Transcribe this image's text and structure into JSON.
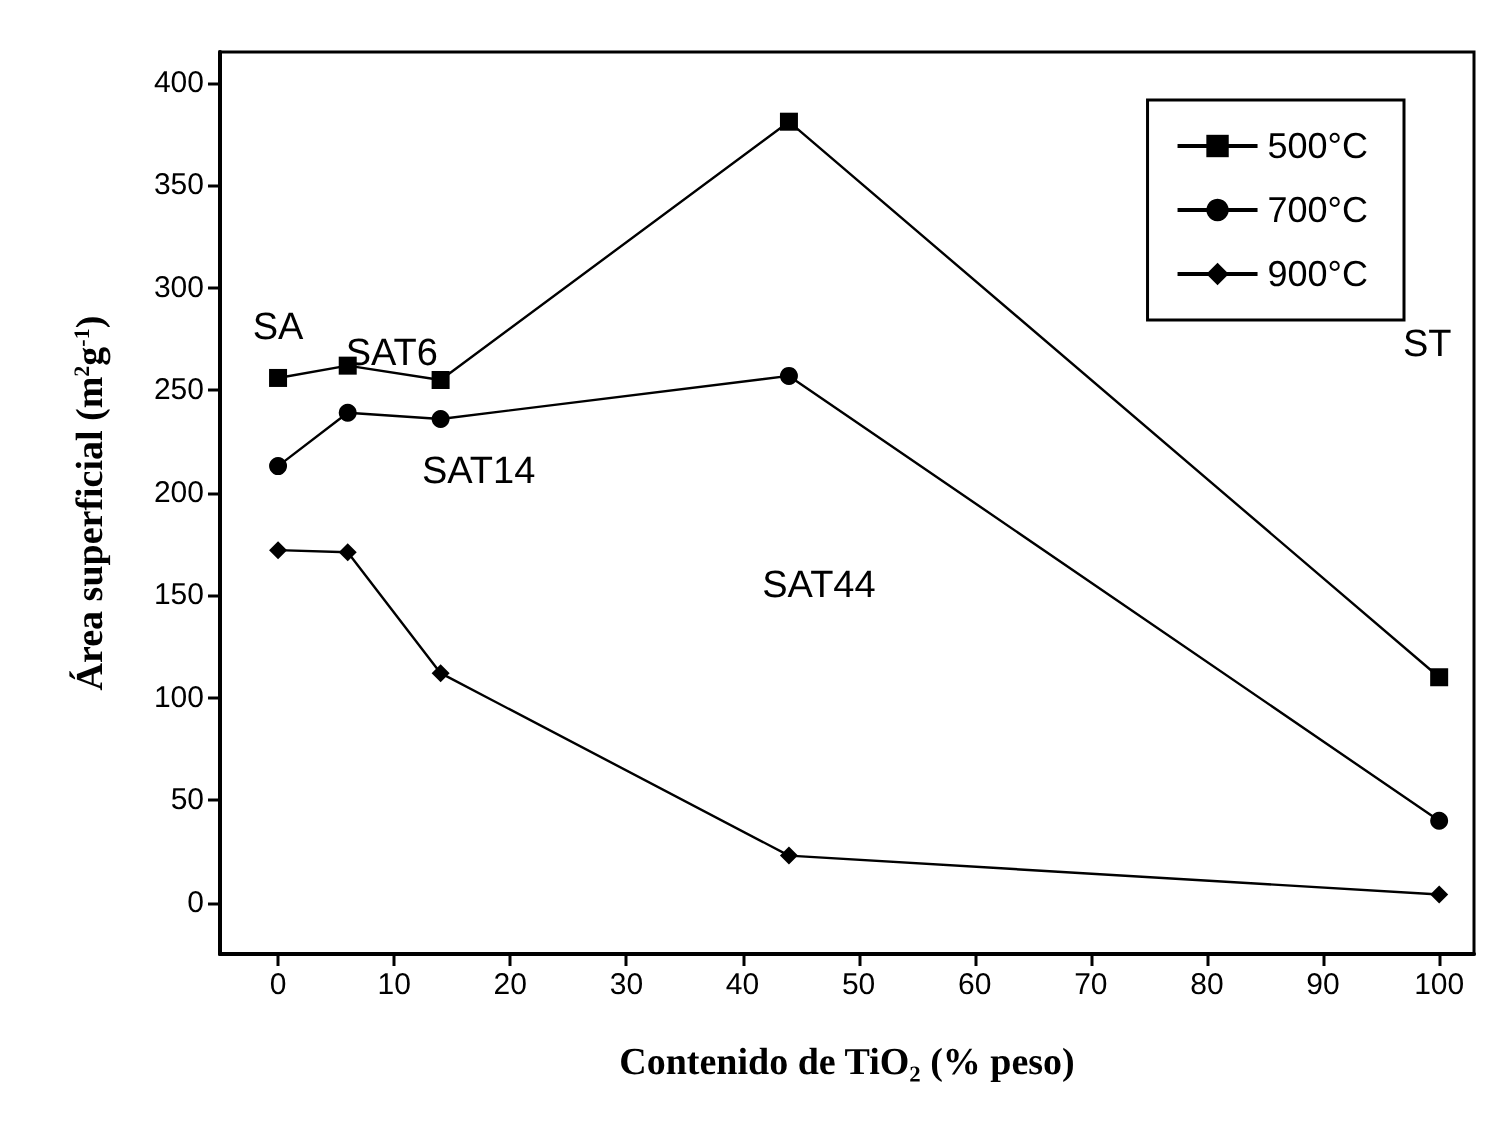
{
  "chart_data": {
    "type": "line",
    "xlabel": "Contenido de TiO₂ (% peso)",
    "ylabel": "Área superficial (m$^{2}$g$^{-1}$)",
    "x": [
      0,
      6,
      14,
      44,
      100
    ],
    "series": [
      {
        "name": "500°C",
        "color": "#000000",
        "marker": "square",
        "values": [
          256,
          262,
          255,
          381,
          110
        ]
      },
      {
        "name": "700°C",
        "color": "#000000",
        "marker": "circle",
        "values": [
          213,
          239,
          236,
          257,
          40
        ]
      },
      {
        "name": "900°C",
        "color": "#000000",
        "marker": "diamond",
        "values": [
          172,
          171,
          112,
          23,
          4
        ]
      }
    ],
    "annotations": [
      "SA",
      "SAT6",
      "SAT14",
      "SAT44",
      "ST"
    ],
    "xlim": [
      -5,
      103
    ],
    "xticks": [
      0,
      10,
      20,
      30,
      40,
      50,
      60,
      70,
      80,
      90,
      100
    ],
    "ylim": [
      -25,
      415
    ],
    "yticks": [
      0,
      50,
      100,
      150,
      200,
      250,
      300,
      350,
      400
    ],
    "grid": false,
    "legend": "top right",
    "line_style": "solid"
  }
}
